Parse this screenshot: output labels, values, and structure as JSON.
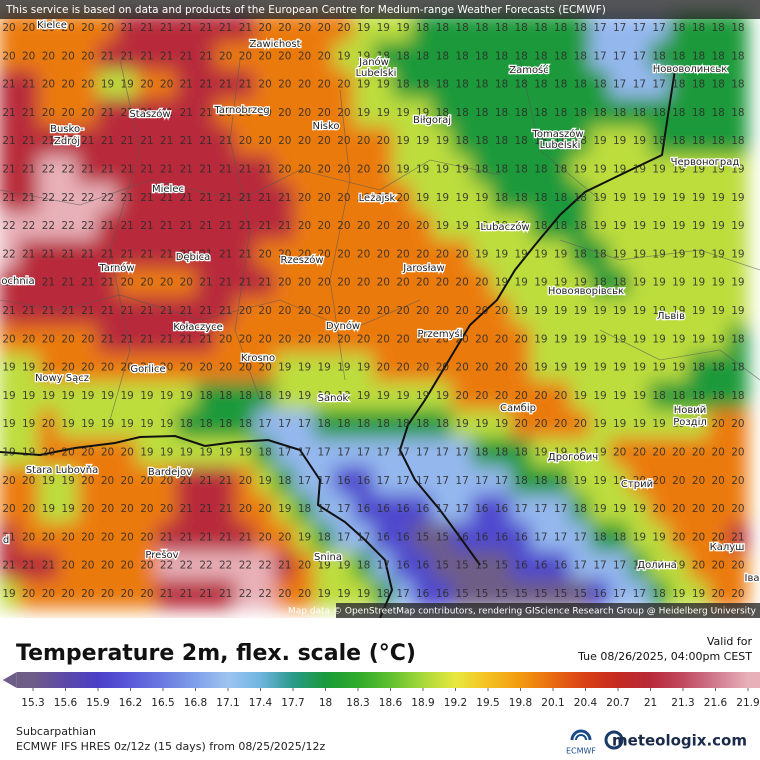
{
  "notice": "This service is based on data and products of the European Centre for Medium-range Weather Forecasts (ECMWF)",
  "map": {
    "grid": [
      [
        20,
        20,
        20,
        20,
        20,
        20,
        21,
        21,
        21,
        21,
        21,
        21,
        21,
        20,
        20,
        20,
        20,
        20,
        19,
        19,
        19,
        18,
        18,
        18,
        18,
        18,
        18,
        18,
        18,
        18,
        17,
        17,
        17,
        17,
        18,
        18,
        18,
        18
      ],
      [
        20,
        20,
        20,
        20,
        20,
        21,
        21,
        21,
        21,
        21,
        21,
        20,
        20,
        20,
        20,
        20,
        20,
        19,
        19,
        18,
        18,
        18,
        18,
        18,
        18,
        18,
        18,
        18,
        18,
        18,
        17,
        17,
        17,
        18,
        18,
        18,
        18,
        18
      ],
      [
        21,
        21,
        20,
        20,
        20,
        19,
        19,
        20,
        20,
        21,
        21,
        21,
        21,
        20,
        20,
        20,
        20,
        20,
        19,
        19,
        18,
        18,
        18,
        18,
        18,
        18,
        18,
        18,
        18,
        18,
        18,
        17,
        17,
        17,
        18,
        18,
        18,
        18
      ],
      [
        21,
        21,
        20,
        20,
        20,
        21,
        21,
        21,
        21,
        21,
        21,
        20,
        20,
        20,
        20,
        20,
        20,
        20,
        19,
        19,
        19,
        19,
        18,
        18,
        18,
        18,
        18,
        18,
        18,
        18,
        18,
        18,
        18,
        18,
        18,
        18,
        18,
        18
      ],
      [
        21,
        21,
        21,
        21,
        21,
        21,
        21,
        21,
        21,
        21,
        21,
        21,
        20,
        20,
        20,
        20,
        20,
        20,
        20,
        20,
        19,
        19,
        19,
        18,
        18,
        18,
        18,
        18,
        18,
        18,
        19,
        19,
        19,
        18,
        18,
        18,
        18,
        18
      ],
      [
        21,
        21,
        22,
        22,
        21,
        21,
        21,
        21,
        21,
        21,
        21,
        21,
        21,
        21,
        20,
        20,
        20,
        20,
        20,
        20,
        19,
        19,
        19,
        19,
        18,
        18,
        18,
        18,
        18,
        19,
        19,
        19,
        19,
        19,
        19,
        19,
        19,
        19
      ],
      [
        21,
        21,
        22,
        22,
        22,
        22,
        21,
        21,
        21,
        21,
        21,
        21,
        21,
        21,
        21,
        20,
        20,
        20,
        20,
        20,
        20,
        19,
        19,
        19,
        19,
        18,
        18,
        18,
        18,
        18,
        19,
        19,
        19,
        19,
        19,
        19,
        19,
        19
      ],
      [
        22,
        22,
        22,
        22,
        22,
        21,
        21,
        21,
        21,
        21,
        21,
        21,
        21,
        21,
        21,
        20,
        20,
        20,
        20,
        20,
        20,
        20,
        19,
        19,
        19,
        19,
        19,
        18,
        18,
        18,
        19,
        19,
        19,
        19,
        19,
        19,
        19,
        19
      ],
      [
        22,
        21,
        21,
        21,
        21,
        21,
        21,
        21,
        21,
        21,
        21,
        21,
        21,
        20,
        20,
        20,
        20,
        20,
        20,
        20,
        20,
        20,
        20,
        20,
        19,
        19,
        19,
        19,
        19,
        18,
        18,
        19,
        19,
        19,
        19,
        19,
        19,
        19
      ],
      [
        21,
        21,
        21,
        21,
        21,
        21,
        20,
        20,
        20,
        20,
        21,
        21,
        21,
        21,
        20,
        20,
        20,
        20,
        20,
        20,
        20,
        20,
        20,
        20,
        20,
        19,
        19,
        19,
        19,
        19,
        18,
        18,
        19,
        19,
        19,
        19,
        19,
        19
      ],
      [
        21,
        21,
        21,
        21,
        21,
        21,
        21,
        21,
        21,
        21,
        21,
        21,
        20,
        20,
        20,
        20,
        20,
        20,
        20,
        20,
        20,
        20,
        20,
        20,
        20,
        20,
        19,
        19,
        19,
        19,
        19,
        19,
        19,
        19,
        19,
        19,
        19,
        19
      ],
      [
        20,
        20,
        20,
        20,
        20,
        21,
        21,
        21,
        21,
        21,
        21,
        20,
        20,
        20,
        20,
        20,
        20,
        20,
        20,
        20,
        20,
        20,
        20,
        20,
        20,
        20,
        20,
        19,
        19,
        19,
        19,
        19,
        19,
        19,
        19,
        19,
        19,
        18
      ],
      [
        19,
        19,
        20,
        20,
        20,
        20,
        20,
        20,
        20,
        20,
        20,
        20,
        20,
        20,
        19,
        19,
        19,
        19,
        19,
        20,
        20,
        20,
        20,
        20,
        20,
        20,
        20,
        19,
        19,
        19,
        19,
        19,
        19,
        19,
        19,
        18,
        18,
        18
      ],
      [
        19,
        19,
        19,
        19,
        19,
        19,
        19,
        19,
        19,
        19,
        18,
        18,
        18,
        18,
        19,
        19,
        19,
        19,
        19,
        19,
        19,
        19,
        19,
        20,
        20,
        20,
        20,
        20,
        20,
        19,
        19,
        19,
        19,
        18,
        18,
        18,
        18,
        18
      ],
      [
        19,
        19,
        20,
        19,
        19,
        19,
        19,
        19,
        19,
        18,
        18,
        18,
        18,
        17,
        17,
        17,
        18,
        18,
        18,
        18,
        18,
        18,
        18,
        19,
        19,
        19,
        20,
        20,
        20,
        20,
        19,
        19,
        19,
        19,
        19,
        19,
        20,
        20
      ],
      [
        19,
        19,
        20,
        20,
        20,
        20,
        20,
        19,
        19,
        19,
        19,
        19,
        19,
        18,
        17,
        17,
        17,
        17,
        17,
        17,
        17,
        17,
        17,
        17,
        18,
        18,
        18,
        19,
        19,
        19,
        19,
        20,
        20,
        20,
        20,
        20,
        20,
        20
      ],
      [
        20,
        20,
        19,
        19,
        20,
        20,
        20,
        20,
        20,
        21,
        21,
        21,
        20,
        19,
        18,
        17,
        17,
        16,
        16,
        17,
        17,
        17,
        17,
        17,
        17,
        17,
        18,
        18,
        18,
        19,
        19,
        19,
        20,
        20,
        20,
        20,
        20,
        20
      ],
      [
        20,
        20,
        19,
        19,
        20,
        20,
        20,
        20,
        20,
        21,
        21,
        21,
        20,
        20,
        19,
        18,
        17,
        17,
        16,
        16,
        16,
        16,
        17,
        17,
        16,
        16,
        17,
        17,
        17,
        18,
        19,
        19,
        19,
        20,
        20,
        20,
        20,
        20
      ],
      [
        21,
        20,
        20,
        20,
        20,
        20,
        20,
        20,
        21,
        21,
        21,
        21,
        21,
        20,
        20,
        19,
        18,
        17,
        17,
        16,
        16,
        15,
        15,
        16,
        16,
        16,
        16,
        17,
        17,
        17,
        18,
        18,
        19,
        19,
        20,
        20,
        20,
        21
      ],
      [
        21,
        21,
        21,
        20,
        20,
        20,
        20,
        20,
        22,
        22,
        22,
        22,
        22,
        22,
        21,
        20,
        19,
        19,
        18,
        17,
        16,
        16,
        15,
        15,
        15,
        15,
        16,
        16,
        16,
        17,
        17,
        17,
        18,
        19,
        19,
        20,
        20,
        20
      ],
      [
        19,
        20,
        20,
        20,
        20,
        20,
        20,
        20,
        21,
        21,
        21,
        21,
        22,
        22,
        20,
        20,
        19,
        19,
        19,
        18,
        17,
        16,
        16,
        15,
        15,
        15,
        15,
        15,
        15,
        15,
        16,
        17,
        17,
        18,
        19,
        19,
        20,
        20
      ]
    ],
    "labels": [
      "Kielce",
      "Zawichost",
      "Janów",
      "Lubelski",
      "Zamość",
      "Нововолинськ",
      "Staszów",
      "Tarnobrzeg",
      "Nisko",
      "Biłgoraj",
      "Busko-",
      "Zdrój",
      "Tomaszów",
      "Lubelski",
      "Червоноград",
      "Mielec",
      "Leżajsk",
      "Lubaczów",
      "Tarnów",
      "Dębica",
      "Rzeszów",
      "Jarosław",
      "Новояворівськ",
      "ochnia",
      "Львів",
      "Kołaczyce",
      "Dynów",
      "Przemyśl",
      "Gorlice",
      "Krosno",
      "Nowy Sącz",
      "Sanok",
      "Самбір",
      "Новий",
      "Розділ",
      "Stara Lubovňa",
      "Bardejov",
      "Дрогобич",
      "Стрий",
      "d",
      "Prešov",
      "Snina",
      "Калуш",
      "Долина",
      "Іва"
    ]
  },
  "attribution": "Map data © OpenStreetMap contributors, rendering GIScience Research Group @ Heidelberg University",
  "legend": {
    "title": "Temperature 2m, flex. scale (°C)",
    "valid_label": "Valid for",
    "valid_time": "Tue 08/26/2025, 04:00pm CEST",
    "colorbar": {
      "ticks": [
        15.3,
        15.6,
        15.9,
        16.2,
        16.5,
        16.8,
        17.1,
        17.4,
        17.7,
        18,
        18.3,
        18.6,
        18.9,
        19.2,
        19.5,
        19.8,
        20.1,
        20.4,
        20.7,
        21,
        21.3,
        21.6,
        21.9
      ],
      "colors": [
        "#6e5d86",
        "#5b4aa8",
        "#4b3fc7",
        "#5a59d8",
        "#6b7be0",
        "#7fa0ea",
        "#9ec4f0",
        "#6fb5e0",
        "#2a9a88",
        "#1a9a3a",
        "#2faa2a",
        "#60c030",
        "#a8d83a",
        "#e8e840",
        "#f5c020",
        "#f29a10",
        "#e86a10",
        "#d84015",
        "#c42a20",
        "#b82a3a",
        "#c04a60",
        "#d07a90",
        "#e8b0b8"
      ]
    }
  },
  "footer": {
    "region": "Subcarpathian",
    "model": "ECMWF IFS HRES 0z/12z (15 days) from  08/25/2025/12z",
    "ecmwf": "ECMWF",
    "brand": "meteologix.com"
  }
}
